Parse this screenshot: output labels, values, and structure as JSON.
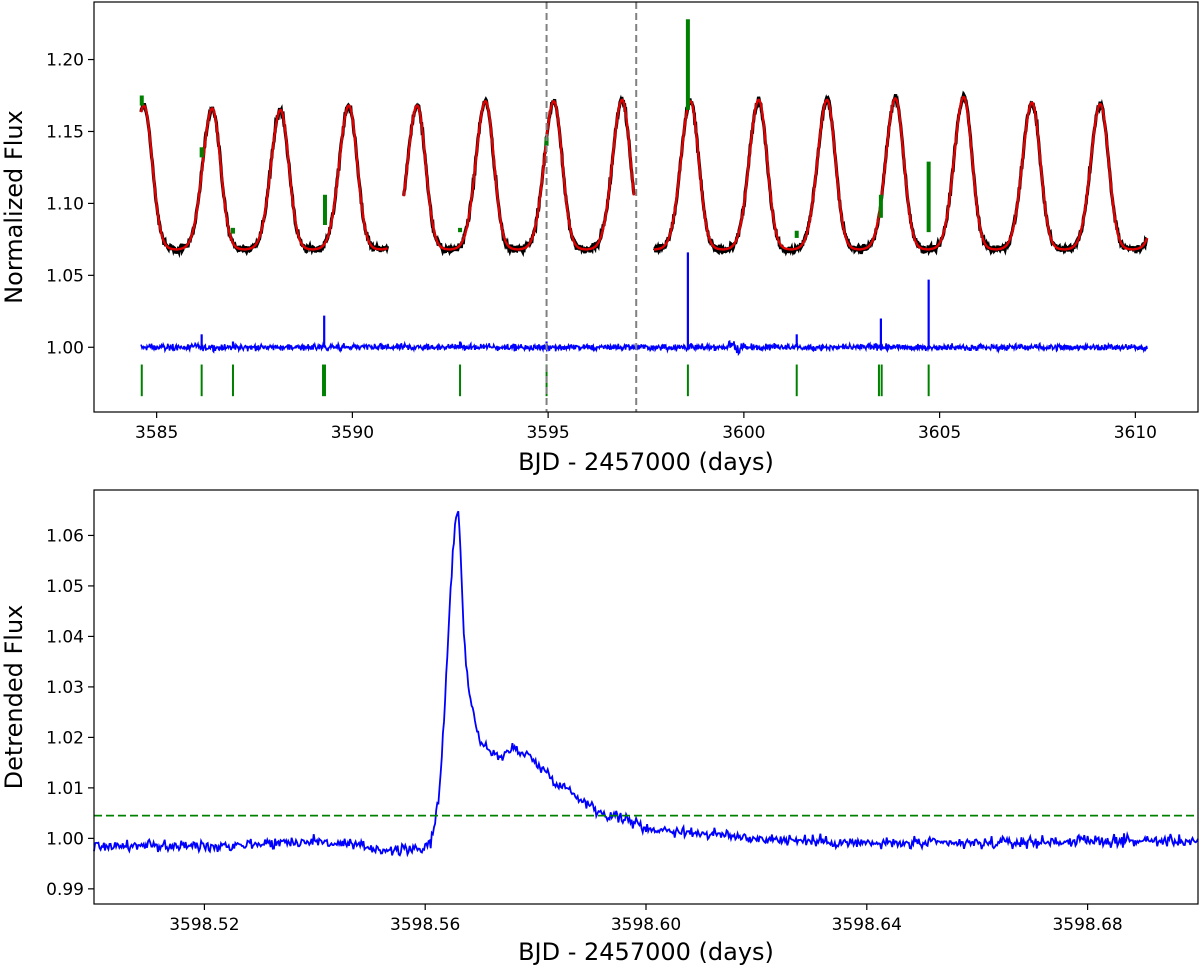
{
  "chart_data": [
    {
      "type": "line",
      "xlabel": "BJD - 2457000 (days)",
      "ylabel": "Normalized Flux",
      "xlim": [
        3583.4,
        3611.6
      ],
      "ylim": [
        0.955,
        1.24
      ],
      "xticks": [
        "3585",
        "3590",
        "3595",
        "3600",
        "3605",
        "3610"
      ],
      "yticks": [
        "1.00",
        "1.05",
        "1.10",
        "1.15",
        "1.20"
      ],
      "grid": false,
      "colors": {
        "lightcurve": "#000000",
        "model": "#e00000",
        "flares": "#008000",
        "residual": "#0000ff",
        "vlines": "#808080"
      },
      "series": [
        {
          "role": "light curve + model",
          "period_days": 1.745,
          "first_peak_x": 3586.42,
          "baseline": 1.068,
          "peak_values": [
            1.168,
            1.166,
            1.165,
            1.168,
            1.168,
            1.171,
            1.171,
            1.172,
            1.171,
            1.172,
            1.172,
            1.173,
            1.174,
            1.17,
            1.169,
            1.168
          ],
          "gaps": [
            [
              3590.9,
              3591.3
            ],
            [
              3597.2,
              3597.7
            ]
          ]
        },
        {
          "role": "detrended residual",
          "baseline": 1.0,
          "spikes": [
            {
              "x": 3586.15,
              "y": 1.009
            },
            {
              "x": 3586.95,
              "y": 1.004
            },
            {
              "x": 3589.28,
              "y": 1.022
            },
            {
              "x": 3592.75,
              "y": 1.004
            },
            {
              "x": 3594.96,
              "y": 1.004
            },
            {
              "x": 3598.57,
              "y": 1.066
            },
            {
              "x": 3601.35,
              "y": 1.009
            },
            {
              "x": 3603.5,
              "y": 1.02
            },
            {
              "x": 3604.72,
              "y": 1.047
            }
          ]
        },
        {
          "role": "flare markers",
          "x": [
            3584.62,
            3586.15,
            3586.95,
            3589.25,
            3589.3,
            3592.75,
            3594.96,
            3598.57,
            3601.35,
            3603.45,
            3603.52,
            3604.72
          ],
          "y": 0.977
        },
        {
          "role": "flare points on light curve",
          "segments": [
            {
              "x": 3584.62,
              "y": [
                1.168,
                1.175
              ]
            },
            {
              "x": 3586.15,
              "y": [
                1.132,
                1.139
              ]
            },
            {
              "x": 3586.95,
              "y": [
                1.079,
                1.083
              ]
            },
            {
              "x": 3589.3,
              "y": [
                1.085,
                1.106
              ]
            },
            {
              "x": 3592.75,
              "y": [
                1.08,
                1.083
              ]
            },
            {
              "x": 3594.96,
              "y": [
                1.14,
                1.146
              ]
            },
            {
              "x": 3598.57,
              "y": [
                1.165,
                1.228
              ]
            },
            {
              "x": 3601.35,
              "y": [
                1.076,
                1.081
              ]
            },
            {
              "x": 3603.5,
              "y": [
                1.09,
                1.106
              ]
            },
            {
              "x": 3604.72,
              "y": [
                1.08,
                1.129
              ]
            }
          ]
        }
      ],
      "vlines": [
        3594.96,
        3597.25
      ]
    },
    {
      "type": "line",
      "xlabel": "BJD - 2457000 (days)",
      "ylabel": "Detrended Flux",
      "xlim": [
        3598.5,
        3598.7
      ],
      "ylim": [
        0.987,
        1.069
      ],
      "xticks": [
        "3598.52",
        "3598.56",
        "3598.60",
        "3598.64",
        "3598.68"
      ],
      "yticks": [
        "0.99",
        "1.00",
        "1.01",
        "1.02",
        "1.03",
        "1.04",
        "1.05",
        "1.06"
      ],
      "grid": false,
      "hline": 1.0045,
      "colors": {
        "curve": "#0000ff",
        "hline": "#008000"
      },
      "series": [
        {
          "role": "flare profile",
          "x": [
            3598.5,
            3598.52,
            3598.54,
            3598.555,
            3598.561,
            3598.5625,
            3598.5635,
            3598.5645,
            3598.5655,
            3598.566,
            3598.5665,
            3598.567,
            3598.568,
            3598.569,
            3598.57,
            3598.572,
            3598.574,
            3598.576,
            3598.578,
            3598.58,
            3598.582,
            3598.584,
            3598.586,
            3598.588,
            3598.59,
            3598.592,
            3598.594,
            3598.596,
            3598.598,
            3598.6,
            3598.605,
            3598.61,
            3598.62,
            3598.63,
            3598.64,
            3598.66,
            3598.68,
            3598.7
          ],
          "values": [
            0.9985,
            0.9985,
            0.9995,
            0.9975,
            0.9985,
            1.008,
            1.025,
            1.048,
            1.064,
            1.065,
            1.055,
            1.04,
            1.028,
            1.024,
            1.019,
            1.017,
            1.016,
            1.018,
            1.017,
            1.015,
            1.013,
            1.011,
            1.0095,
            1.008,
            1.0065,
            1.005,
            1.0045,
            1.004,
            1.003,
            1.002,
            1.0015,
            1.001,
            1.0,
            0.9995,
            0.999,
            0.999,
            0.9995,
            0.9995
          ]
        }
      ]
    }
  ]
}
